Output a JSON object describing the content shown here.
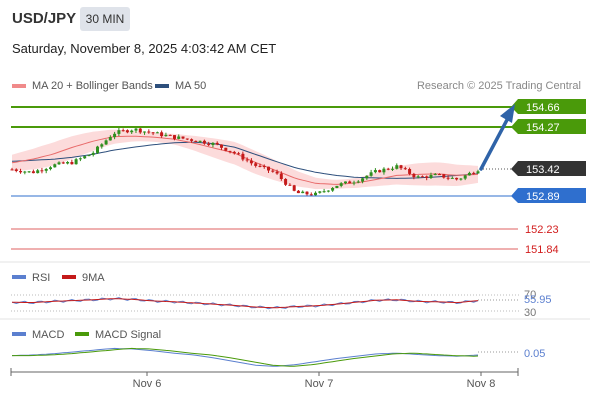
{
  "header": {
    "symbol": "USD/JPY",
    "timeframe": "30 MIN",
    "datetime": "Saturday, November 8, 2025 4:03:42 AM CET"
  },
  "legend": {
    "ma20_bb": "MA 20 + Bollinger Bands",
    "ma50": "MA 50",
    "credit": "Research © 2025 Trading Central"
  },
  "price_levels": [
    {
      "value": 154.66,
      "label": "154.66",
      "kind": "resistance",
      "color": "#4a9a0a"
    },
    {
      "value": 154.27,
      "label": "154.27",
      "kind": "resistance",
      "color": "#4a9a0a"
    },
    {
      "value": 153.42,
      "label": "153.42",
      "kind": "last",
      "color": "#333333"
    },
    {
      "value": 152.89,
      "label": "152.89",
      "kind": "pivot",
      "color": "#2f6fce"
    },
    {
      "value": 152.23,
      "label": "152.23",
      "kind": "support",
      "color": "#d21c1c"
    },
    {
      "value": 151.84,
      "label": "151.84",
      "kind": "support",
      "color": "#d21c1c"
    }
  ],
  "rsi_panel": {
    "legend_rsi": "RSI",
    "legend_ma": "9MA",
    "level_70": "70",
    "value": "55.95",
    "level_30": "30"
  },
  "macd_panel": {
    "legend_macd": "MACD",
    "legend_signal": "MACD Signal",
    "value": "0.05"
  },
  "x_axis": [
    "Nov 6",
    "Nov 7",
    "Nov 8"
  ],
  "colors": {
    "up_candle": "#2f8f1f",
    "down_candle": "#c41a1a",
    "bollinger_fill": "#fbd5d5",
    "ma20": "#e86a6a",
    "ma50": "#2d4f7c",
    "rsi": "#5b7fcf",
    "macd": "#5b7fcf",
    "macd_signal": "#4a9a0a",
    "arrow": "#2f63a8"
  },
  "chart_data": {
    "type": "candlestick",
    "x": [
      "Nov 6",
      "Nov 7",
      "Nov 8"
    ],
    "price_close": [
      153.42,
      153.36,
      153.5,
      153.56,
      153.75,
      154.14,
      154.22,
      154.14,
      154.06,
      154.0,
      153.92,
      153.74,
      153.5,
      153.35,
      152.95,
      152.92,
      153.1,
      153.2,
      153.38,
      153.48,
      153.26,
      153.3,
      153.22,
      153.42
    ],
    "ma20": [
      153.55,
      153.62,
      153.72,
      153.86,
      153.98,
      154.07,
      154.08,
      154.06,
      154.02,
      153.94,
      153.84,
      153.74,
      153.56,
      153.4,
      153.24,
      153.14,
      153.12,
      153.15,
      153.22,
      153.3,
      153.32,
      153.33,
      153.3,
      153.32
    ],
    "ma50": [
      153.58,
      153.6,
      153.62,
      153.66,
      153.72,
      153.8,
      153.86,
      153.91,
      153.95,
      153.96,
      153.93,
      153.86,
      153.72,
      153.58,
      153.45,
      153.36,
      153.3,
      153.26,
      153.25,
      153.24,
      153.25,
      153.27,
      153.3,
      153.33
    ],
    "rsi": [
      52,
      51,
      54,
      56,
      58,
      61,
      59,
      55,
      53,
      50,
      47,
      44,
      40,
      38,
      41,
      43,
      47,
      52,
      57,
      58,
      54,
      53,
      51,
      56
    ],
    "rsi_last": 55.95,
    "macd": [
      0.04,
      0.05,
      0.07,
      0.1,
      0.13,
      0.16,
      0.15,
      0.12,
      0.08,
      0.05,
      0.0,
      -0.06,
      -0.12,
      -0.14,
      -0.11,
      -0.06,
      -0.01,
      0.03,
      0.07,
      0.08,
      0.06,
      0.04,
      0.03,
      0.05
    ],
    "macd_last": 0.05
  }
}
